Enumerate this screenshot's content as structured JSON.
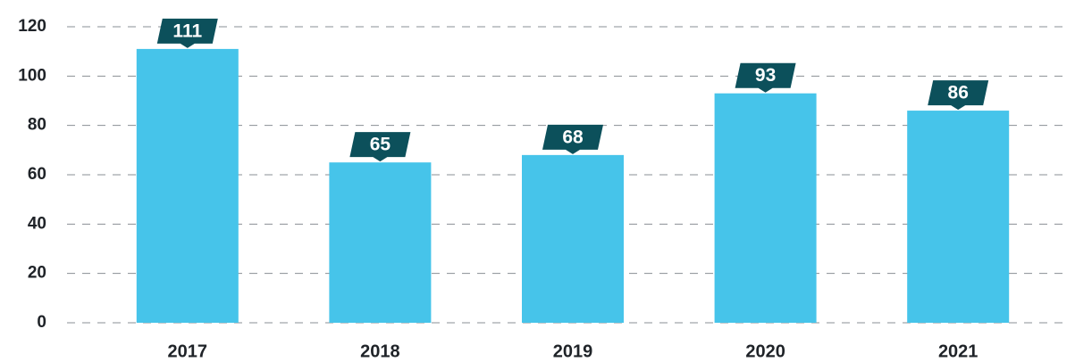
{
  "chart_data": {
    "type": "bar",
    "categories": [
      "2017",
      "2018",
      "2019",
      "2020",
      "2021"
    ],
    "values": [
      111,
      65,
      68,
      93,
      86
    ],
    "color": "#46c4ea",
    "label_color": "#0c505b",
    "ylim": [
      0,
      120
    ],
    "yticks": [
      0,
      20,
      40,
      60,
      80,
      100,
      120
    ],
    "grid": true
  }
}
